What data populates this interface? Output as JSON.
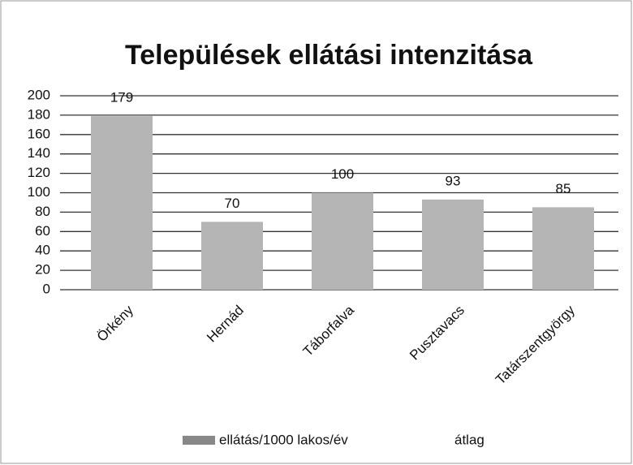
{
  "chart_data": {
    "type": "bar",
    "title": "Települések ellátási intenzitása",
    "categories": [
      "Örkény",
      "Hernád",
      "Táborfalva",
      "Pusztavacs",
      "Tatárszentgyörgy"
    ],
    "series": [
      {
        "name": "ellátás/1000 lakos/év",
        "color": "#b5b5b5",
        "values": [
          179,
          70,
          100,
          93,
          85
        ]
      },
      {
        "name": "átlag",
        "color": "#ffffff",
        "type": "line",
        "values": [
          null,
          null,
          null,
          null,
          null
        ]
      }
    ],
    "ylim": [
      0,
      200
    ],
    "yticks": [
      0,
      20,
      40,
      60,
      80,
      100,
      120,
      140,
      160,
      180,
      200
    ],
    "grid": true,
    "legend": "bottom"
  }
}
